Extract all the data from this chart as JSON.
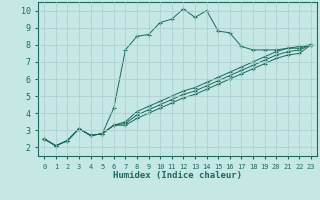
{
  "xlabel": "Humidex (Indice chaleur)",
  "xlim": [
    -0.5,
    23.5
  ],
  "ylim": [
    1.5,
    10.5
  ],
  "xticks": [
    0,
    1,
    2,
    3,
    4,
    5,
    6,
    7,
    8,
    9,
    10,
    11,
    12,
    13,
    14,
    15,
    16,
    17,
    18,
    19,
    20,
    21,
    22,
    23
  ],
  "yticks": [
    2,
    3,
    4,
    5,
    6,
    7,
    8,
    9,
    10
  ],
  "bg_color": "#c5e8e5",
  "line_color": "#1a6b5a",
  "grid_color": "#aacccc",
  "lines": [
    {
      "x": [
        0,
        1,
        2,
        3,
        4,
        5,
        6,
        7,
        8,
        9,
        10,
        11,
        12,
        13,
        14,
        15,
        16,
        17,
        18,
        19,
        20,
        21,
        22,
        23
      ],
      "y": [
        2.5,
        2.1,
        2.4,
        3.1,
        2.7,
        2.8,
        4.3,
        7.7,
        8.5,
        8.6,
        9.3,
        9.5,
        10.1,
        9.6,
        10.0,
        8.8,
        8.7,
        7.9,
        7.7,
        7.7,
        7.7,
        7.8,
        7.8,
        8.0
      ]
    },
    {
      "x": [
        0,
        1,
        2,
        3,
        4,
        5,
        6,
        7,
        8,
        9,
        10,
        11,
        12,
        13,
        14,
        15,
        16,
        17,
        18,
        19,
        20,
        21,
        22,
        23
      ],
      "y": [
        2.5,
        2.1,
        2.4,
        3.1,
        2.7,
        2.8,
        3.3,
        3.5,
        4.1,
        4.4,
        4.7,
        5.0,
        5.3,
        5.5,
        5.8,
        6.1,
        6.4,
        6.7,
        7.0,
        7.3,
        7.6,
        7.8,
        7.9,
        8.0
      ]
    },
    {
      "x": [
        0,
        1,
        2,
        3,
        4,
        5,
        6,
        7,
        8,
        9,
        10,
        11,
        12,
        13,
        14,
        15,
        16,
        17,
        18,
        19,
        20,
        21,
        22,
        23
      ],
      "y": [
        2.5,
        2.1,
        2.4,
        3.1,
        2.7,
        2.8,
        3.3,
        3.4,
        3.9,
        4.2,
        4.5,
        4.8,
        5.1,
        5.3,
        5.6,
        5.9,
        6.2,
        6.5,
        6.8,
        7.1,
        7.4,
        7.6,
        7.7,
        8.0
      ]
    },
    {
      "x": [
        0,
        1,
        2,
        3,
        4,
        5,
        6,
        7,
        8,
        9,
        10,
        11,
        12,
        13,
        14,
        15,
        16,
        17,
        18,
        19,
        20,
        21,
        22,
        23
      ],
      "y": [
        2.5,
        2.1,
        2.4,
        3.1,
        2.7,
        2.8,
        3.3,
        3.3,
        3.7,
        4.0,
        4.3,
        4.6,
        4.9,
        5.1,
        5.4,
        5.7,
        6.0,
        6.3,
        6.6,
        6.9,
        7.2,
        7.4,
        7.5,
        8.0
      ]
    }
  ]
}
